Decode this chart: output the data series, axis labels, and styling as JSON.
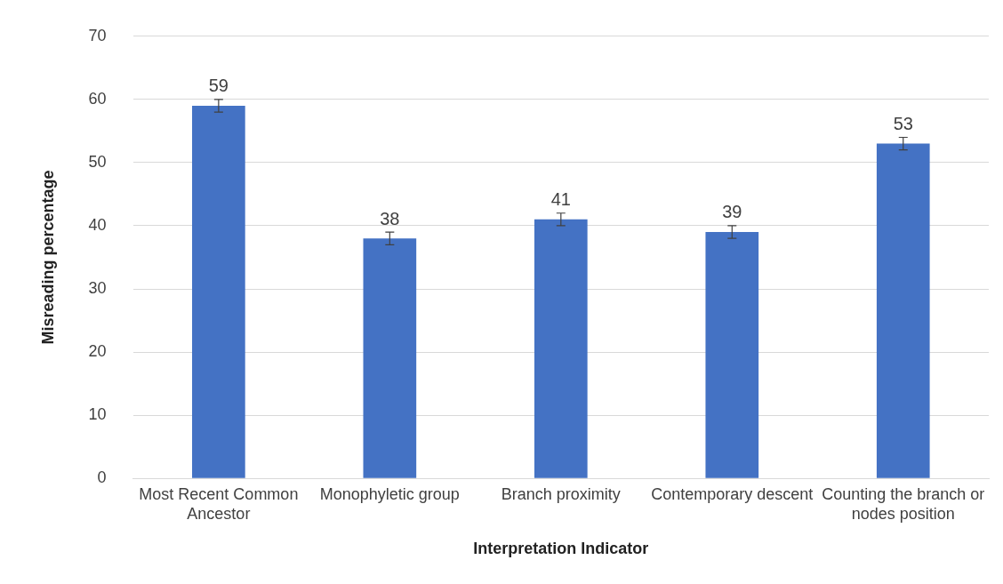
{
  "chart_data": {
    "type": "bar",
    "xlabel": "Interpretation Indicator",
    "ylabel": "Misreading percentage",
    "categories": [
      "Most Recent Common Ancestor",
      "Monophyletic group",
      "Branch proximity",
      "Contemporary descent",
      "Counting the branch or nodes position"
    ],
    "values": [
      59,
      38,
      41,
      39,
      53
    ],
    "errors": [
      1,
      1,
      1,
      1,
      1
    ],
    "color": "#4472c4",
    "ylim": [
      0,
      70
    ],
    "yticks": [
      0,
      10,
      20,
      30,
      40,
      50,
      60,
      70
    ],
    "grid": "y",
    "data_labels": true,
    "legend": false
  }
}
